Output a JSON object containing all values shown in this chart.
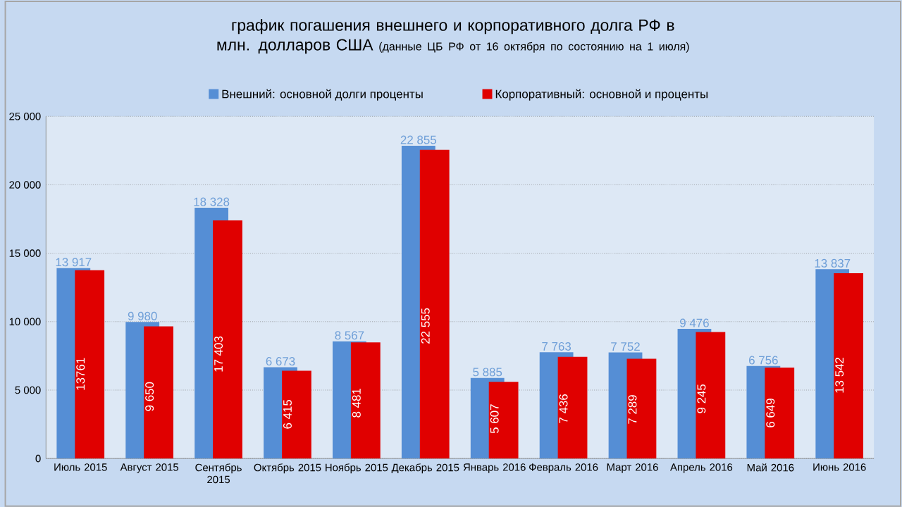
{
  "chart_data": {
    "type": "bar",
    "title": "график погашения внешнего и корпоративного долга РФ в млн. долларов США",
    "subtitle": "(данные ЦБ РФ от 16 октября по состоянию на 1  июля)",
    "categories": [
      "Июль 2015",
      "Август 2015",
      "Сентябрь 2015",
      "Октябрь 2015",
      "Ноябрь 2015",
      "Декабрь 2015",
      "Январь 2016",
      "Февраль 2016",
      "Март 2016",
      "Апрель 2016",
      "Май 2016",
      "Июнь 2016"
    ],
    "series": [
      {
        "name": "Внешний: основной долги проценты",
        "color": "#558ed5",
        "values": [
          13917,
          9980,
          18328,
          6673,
          8567,
          22855,
          5885,
          7763,
          7752,
          9476,
          6756,
          13837
        ],
        "value_labels": [
          "13 917",
          "9 980",
          "18 328",
          "6 673",
          "8 567",
          "22 855",
          "5 885",
          "7 763",
          "7 752",
          "9 476",
          "6 756",
          "13 837"
        ]
      },
      {
        "name": "Корпоративный: основной и проценты",
        "color": "#e00000",
        "values": [
          13761,
          9650,
          17403,
          6415,
          8481,
          22555,
          5607,
          7436,
          7289,
          9245,
          6649,
          13542
        ],
        "value_labels": [
          "13761",
          "9 650",
          "17 403",
          "6 415",
          "8 481",
          "22 555",
          "5 607",
          "7 436",
          "7 289",
          "9 245",
          "6 649",
          "13 542"
        ]
      }
    ],
    "ylim": [
      0,
      25000
    ],
    "yticks": [
      0,
      {
        "value": 5000,
        "label": "5 000"
      },
      {
        "value": 10000,
        "label": "10 000"
      },
      {
        "value": 15000,
        "label": "15 000"
      },
      {
        "value": 20000,
        "label": "20 000"
      },
      {
        "value": 25000,
        "label": "25 000"
      }
    ],
    "grid": "y",
    "legend": "top"
  }
}
